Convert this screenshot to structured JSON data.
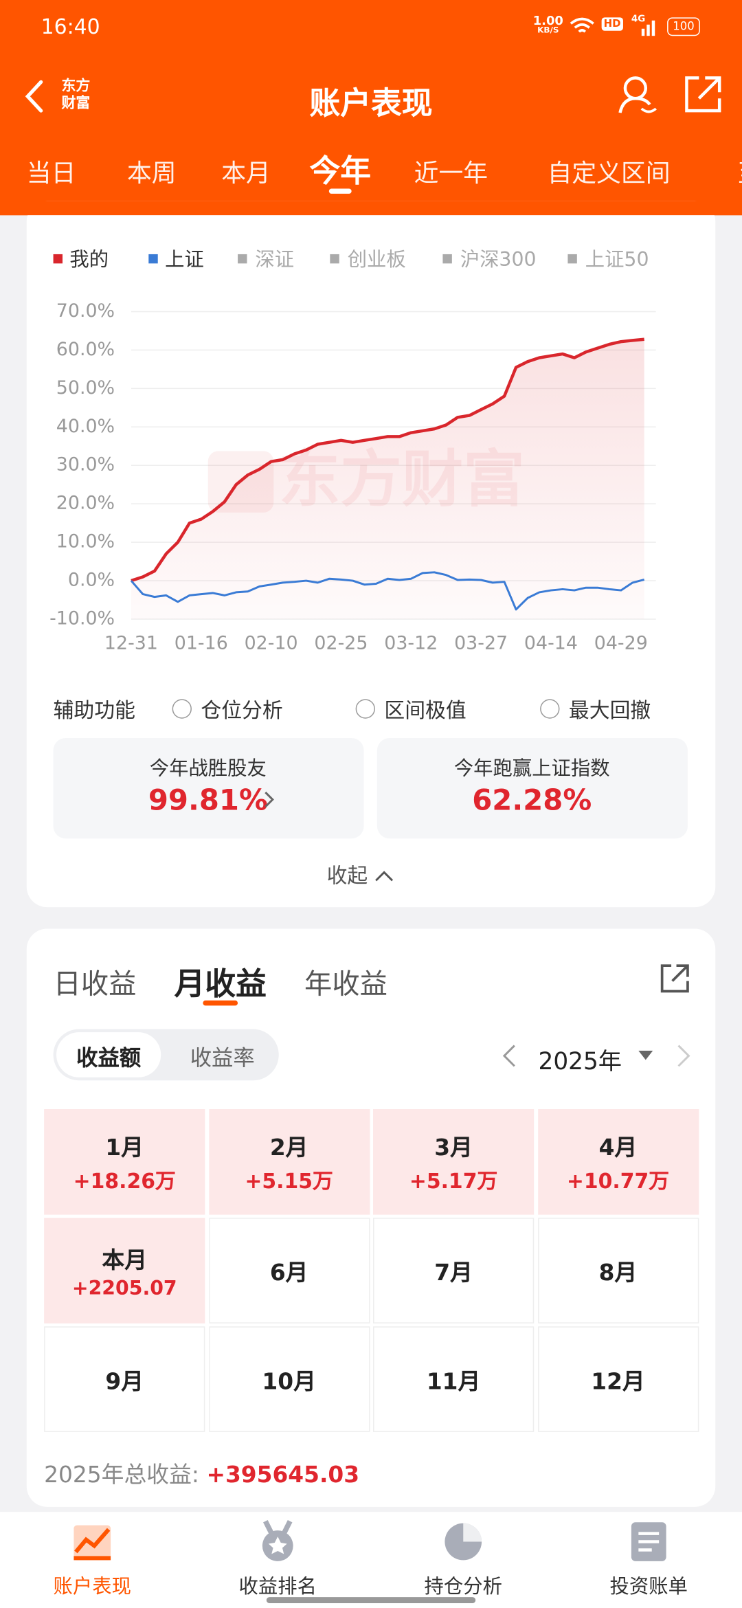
{
  "status_bar": {
    "time": "16:40",
    "net_speed_value": "1.00",
    "net_speed_unit": "KB/S",
    "hd": "HD",
    "network": "4G",
    "battery": "100"
  },
  "header": {
    "logo_top": "东方",
    "logo_bottom": "财富",
    "title": "账户表现"
  },
  "period_tabs": {
    "items": [
      "当日",
      "本周",
      "本月",
      "今年",
      "近一年",
      "自定义区间",
      "至"
    ],
    "active": 3
  },
  "chart_data": {
    "type": "line",
    "watermark": "东方财富",
    "categories": [
      "12-31",
      null,
      null,
      null,
      null,
      null,
      "01-16",
      null,
      null,
      null,
      null,
      null,
      "02-10",
      null,
      null,
      null,
      null,
      null,
      "02-25",
      null,
      null,
      null,
      null,
      null,
      "03-12",
      null,
      null,
      null,
      null,
      null,
      "03-27",
      null,
      null,
      null,
      null,
      null,
      "04-14",
      null,
      null,
      null,
      null,
      null,
      "04-29",
      null,
      null
    ],
    "series": [
      {
        "name": "我的",
        "color": "#d9262c",
        "fill": true,
        "values": [
          0,
          1,
          2.5,
          7,
          10,
          15,
          16,
          18,
          20.5,
          25,
          27.5,
          29,
          31,
          31.5,
          33,
          34,
          35.5,
          36,
          36.5,
          36,
          36.5,
          37,
          37.5,
          37.5,
          38.5,
          39,
          39.5,
          40.5,
          42.5,
          43,
          44.5,
          46,
          48,
          55.5,
          57,
          58,
          58.5,
          59,
          58,
          59.5,
          60.5,
          61.5,
          62.2,
          62.5,
          62.8
        ]
      },
      {
        "name": "上证",
        "color": "#3a7bd5",
        "fill": false,
        "values": [
          0,
          -3.5,
          -4.2,
          -3.8,
          -5.5,
          -3.8,
          -3.5,
          -3.2,
          -3.8,
          -3,
          -2.8,
          -1.5,
          -1,
          -0.5,
          -0.3,
          0,
          -0.5,
          0.5,
          0.3,
          0,
          -1,
          -0.8,
          0.5,
          0.2,
          0.5,
          2,
          2.2,
          1.5,
          0.2,
          0.3,
          0.2,
          -0.5,
          -0.3,
          -7.5,
          -4.5,
          -3,
          -2.5,
          -2.2,
          -2.5,
          -1.8,
          -1.8,
          -2.2,
          -2.5,
          -0.5,
          0.3
        ]
      }
    ],
    "inactive_legend": {
      "names": [
        "深证",
        "创业板",
        "沪深300",
        "上证50"
      ],
      "color": "#aaaaaa"
    },
    "ylim": [
      -10,
      70
    ],
    "yticks": [
      {
        "value": 70,
        "label": "70.0%"
      },
      {
        "value": 60,
        "label": "60.0%"
      },
      {
        "value": 50,
        "label": "50.0%"
      },
      {
        "value": 40,
        "label": "40.0%"
      },
      {
        "value": 30,
        "label": "30.0%"
      },
      {
        "value": 20,
        "label": "20.0%"
      },
      {
        "value": 10,
        "label": "10.0%"
      },
      {
        "value": 0,
        "label": "0.0%"
      },
      {
        "value": -10,
        "label": "-10.0%"
      }
    ],
    "grid": true
  },
  "aux": {
    "label": "辅助功能",
    "options": [
      "仓位分析",
      "区间极值",
      "最大回撤"
    ]
  },
  "stat_cards": [
    {
      "label": "今年战胜股友",
      "value": "99.81%"
    },
    {
      "label": "今年跑赢上证指数",
      "value": "62.28%"
    }
  ],
  "collapse": "收起",
  "returns": {
    "tabs": [
      "日收益",
      "月收益",
      "年收益"
    ],
    "active_tab": 1,
    "toggle": [
      "收益额",
      "收益率"
    ],
    "active_toggle": 0,
    "year": "2025年",
    "months": [
      {
        "label": "1月",
        "value": "+18.26万"
      },
      {
        "label": "2月",
        "value": "+5.15万"
      },
      {
        "label": "3月",
        "value": "+5.17万"
      },
      {
        "label": "4月",
        "value": "+10.77万"
      },
      {
        "label": "本月",
        "value": "+2205.07"
      },
      {
        "label": "6月"
      },
      {
        "label": "7月"
      },
      {
        "label": "8月"
      },
      {
        "label": "9月"
      },
      {
        "label": "10月"
      },
      {
        "label": "11月"
      },
      {
        "label": "12月"
      }
    ],
    "total_label": "2025年总收益:",
    "total_value": "+395645.03"
  },
  "bottom_nav": {
    "items": [
      "账户表现",
      "收益排名",
      "持仓分析",
      "投资账单"
    ],
    "active": 0
  }
}
